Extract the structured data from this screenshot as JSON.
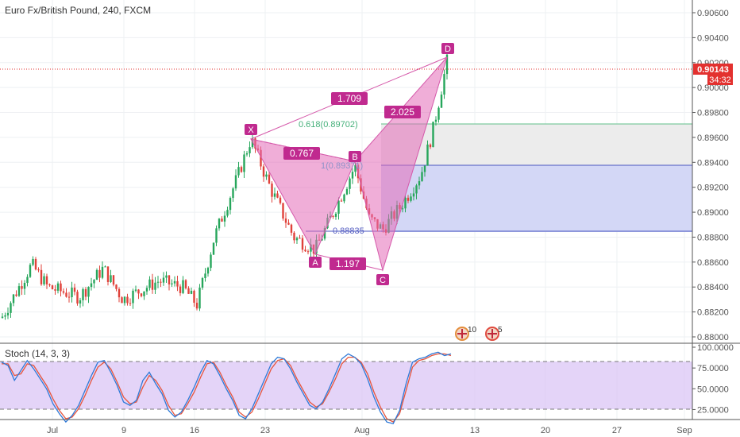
{
  "header": {
    "symbol_title": "Euro Fx/British Pound, 240, FXCM"
  },
  "price_axis": {
    "ticks": [
      "0.90600",
      "0.90400",
      "0.90200",
      "0.90000",
      "0.89800",
      "0.89600",
      "0.89400",
      "0.89200",
      "0.89000",
      "0.88800",
      "0.88600",
      "0.88400",
      "0.88200",
      "0.88000"
    ],
    "last_price": "0.90143",
    "countdown": "34:32"
  },
  "time_axis": {
    "labels": [
      "Jul",
      "9",
      "16",
      "23",
      "Aug",
      "13",
      "20",
      "27",
      "Sep"
    ]
  },
  "pattern": {
    "points": {
      "x": "X",
      "a": "A",
      "b": "B",
      "c": "C",
      "d": "D"
    },
    "ratios": {
      "xb": "0.767",
      "ac": "1.197",
      "bd": "2.025",
      "xd": "1.709"
    }
  },
  "levels": {
    "upper": "0.618(0.89702)",
    "middle": "1(0.89371)",
    "lower": "0.88835"
  },
  "events": {
    "left_count": "10",
    "right_count": "5"
  },
  "stoch": {
    "title": "Stoch (14, 3, 3)",
    "ticks": [
      "100.0000",
      "75.0000",
      "50.0000",
      "25.0000"
    ]
  },
  "colors": {
    "pattern_fill": "#e36cb8",
    "pattern_label": "#c02a8f",
    "candle_up": "#26a65b",
    "candle_down": "#e0413a",
    "last_price": "#e3312f",
    "stoch_k": "#2f7ad8",
    "stoch_d": "#e8553d",
    "stoch_band": "#d9c2f5",
    "fib_upper_line": "#5fbf8a",
    "fib_lower_line": "#4a57c0"
  },
  "chart_data": {
    "type": "candlestick",
    "title": "Euro Fx/British Pound, 240, FXCM",
    "x_ticks": [
      "Jul",
      "9",
      "16",
      "23",
      "Aug",
      "13",
      "20",
      "27",
      "Sep"
    ],
    "ylim": [
      0.8795,
      0.9067
    ],
    "y_ticks": [
      0.906,
      0.904,
      0.902,
      0.9,
      0.898,
      0.896,
      0.894,
      0.892,
      0.89,
      0.888,
      0.886,
      0.884,
      0.882,
      0.88
    ],
    "last_price": 0.90143,
    "harmonic_pattern": {
      "X": 0.8959,
      "A": 0.8866,
      "B": 0.8937,
      "C": 0.8852,
      "D": 0.9023,
      "ratios": {
        "XB": 0.767,
        "AC": 1.197,
        "BD": 2.025,
        "XD": 1.709
      }
    },
    "fib_levels": [
      0.89702,
      0.89371,
      0.88835
    ],
    "stochastic": {
      "params": "14, 3, 3",
      "ylim": [
        13,
        100
      ],
      "bands": [
        80,
        20
      ],
      "k": [
        82,
        78,
        60,
        72,
        84,
        74,
        62,
        50,
        32,
        20,
        10,
        18,
        30,
        48,
        66,
        82,
        84,
        70,
        54,
        34,
        30,
        36,
        60,
        70,
        56,
        44,
        24,
        16,
        22,
        36,
        52,
        70,
        84,
        80,
        66,
        50,
        36,
        18,
        14,
        26,
        44,
        62,
        80,
        88,
        86,
        74,
        58,
        44,
        30,
        26,
        34,
        50,
        68,
        86,
        92,
        88,
        80,
        62,
        40,
        22,
        10,
        8,
        24,
        56,
        82,
        86,
        88,
        92,
        94,
        90,
        92
      ],
      "d": [
        80,
        80,
        66,
        68,
        80,
        78,
        66,
        54,
        38,
        24,
        14,
        16,
        26,
        42,
        60,
        76,
        82,
        74,
        58,
        40,
        32,
        34,
        52,
        66,
        60,
        48,
        30,
        18,
        20,
        32,
        46,
        64,
        80,
        82,
        70,
        54,
        40,
        22,
        16,
        22,
        38,
        56,
        74,
        84,
        86,
        78,
        62,
        48,
        34,
        28,
        32,
        46,
        62,
        80,
        88,
        88,
        82,
        68,
        46,
        28,
        14,
        10,
        20,
        48,
        76,
        84,
        86,
        90,
        92,
        92,
        90
      ]
    }
  }
}
